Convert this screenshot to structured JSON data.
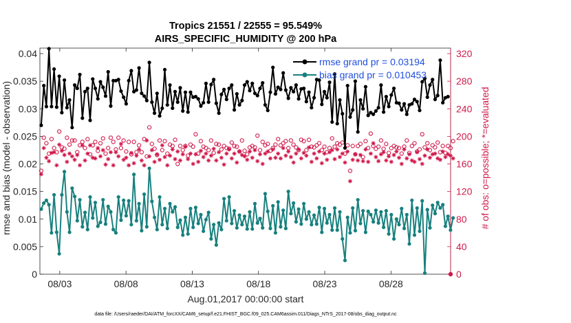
{
  "chart_data": {
    "type": "line",
    "title": "Tropics 21551 / 22555 = 95.549%",
    "subtitle": "AIRS_SPECIFIC_HUMIDITY @ 200 hPa",
    "xlabel": "Aug.01,2017 00:00:00 start",
    "ylabel": "rmse and bias (model - observation)",
    "ylabel_right": "# of obs: o=possible; *=evaluated",
    "xlim": [
      1.5,
      32.5
    ],
    "ylim": [
      0,
      0.041
    ],
    "ylim_right": [
      0,
      328
    ],
    "x_ticks": [
      "08/03",
      "08/08",
      "08/13",
      "08/18",
      "08/23",
      "08/28"
    ],
    "y_ticks": [
      "0",
      "0.005",
      "0.01",
      "0.015",
      "0.02",
      "0.025",
      "0.03",
      "0.035",
      "0.04"
    ],
    "y_right_ticks": [
      "0",
      "40",
      "80",
      "120",
      "160",
      "200",
      "240",
      "280",
      "320"
    ],
    "legend": [
      "rmse grand pr = 0.03194",
      "bias grand pr = 0.010453"
    ],
    "footnote": "data file: /Users/raeder/DAI/ATM_forcXX/CAM6_setup/f.e21.FHIST_BGC.f09_025.CAM6assim.011/Diags_NTrS_2017-08/obs_diag_output.nc",
    "series": [
      {
        "name": "rmse",
        "color": "#000000",
        "values": [
          0.027,
          0.0342,
          0.0304,
          0.0409,
          0.0304,
          0.0372,
          0.0303,
          0.0359,
          0.0293,
          0.0352,
          0.0302,
          0.0316,
          0.0266,
          0.0343,
          0.0337,
          0.0362,
          0.0283,
          0.0331,
          0.0337,
          0.0279,
          0.0354,
          0.0337,
          0.0318,
          0.0349,
          0.0339,
          0.0323,
          0.0367,
          0.0305,
          0.0351,
          0.0351,
          0.0353,
          0.0332,
          0.0321,
          0.0309,
          0.0351,
          0.0369,
          0.0331,
          0.0334,
          0.0374,
          0.0328,
          0.0323,
          0.0315,
          0.0384,
          0.0312,
          0.0292,
          0.0328,
          0.0287,
          0.0301,
          0.0371,
          0.0307,
          0.0343,
          0.0301,
          0.0331,
          0.0312,
          0.0338,
          0.0296,
          0.033,
          0.0294,
          0.033,
          0.0321,
          0.0322,
          0.0318,
          0.0305,
          0.0311,
          0.0346,
          0.0312,
          0.0344,
          0.0353,
          0.031,
          0.0292,
          0.0326,
          0.0335,
          0.0317,
          0.0337,
          0.0343,
          0.0298,
          0.0327,
          0.0307,
          0.0315,
          0.0343,
          0.0349,
          0.0333,
          0.0346,
          0.0328,
          0.0324,
          0.0337,
          0.0347,
          0.0307,
          0.0297,
          0.033,
          0.0375,
          0.0327,
          0.0339,
          0.0335,
          0.0365,
          0.0334,
          0.0319,
          0.0338,
          0.0331,
          0.0343,
          0.0318,
          0.0336,
          0.0337,
          0.0313,
          0.033,
          0.0302,
          0.032,
          0.0353,
          0.0352,
          0.0308,
          0.0331,
          0.032,
          0.0348,
          0.0276,
          0.0363,
          0.0273,
          0.0316,
          0.0291,
          0.0229,
          0.0342,
          0.0285,
          0.0298,
          0.035,
          0.0258,
          0.0316,
          0.03,
          0.034,
          0.0288,
          0.0293,
          0.029,
          0.0296,
          0.0302,
          0.0343,
          0.0294,
          0.0322,
          0.0304,
          0.0325,
          0.0337,
          0.0311,
          0.031,
          0.0298,
          0.0309,
          0.029,
          0.0307,
          0.0309,
          0.0317,
          0.0313,
          0.0297,
          0.0349,
          0.0355,
          0.0321,
          0.0343,
          0.0353,
          0.0317,
          0.0324,
          0.0388,
          0.0311,
          0.032,
          0.0322
        ]
      },
      {
        "name": "bias",
        "color": "#17807e",
        "values": [
          0.0118,
          0.0129,
          0.0134,
          0.0126,
          0.0075,
          0.0144,
          0.0076,
          0.0037,
          0.0144,
          0.0186,
          0.0113,
          0.0076,
          0.0156,
          0.0141,
          0.0097,
          0.0135,
          0.0086,
          0.0112,
          0.0081,
          0.014,
          0.0102,
          0.013,
          0.0087,
          0.0094,
          0.0135,
          0.0091,
          0.0123,
          0.0113,
          0.0081,
          0.0075,
          0.014,
          0.0098,
          0.0134,
          0.0106,
          0.0133,
          0.009,
          0.0181,
          0.0097,
          0.0128,
          0.0079,
          0.0145,
          0.0086,
          0.0192,
          0.0132,
          0.0103,
          0.0081,
          0.014,
          0.009,
          0.0119,
          0.0083,
          0.0128,
          0.0113,
          0.0122,
          0.0085,
          0.0098,
          0.0071,
          0.0103,
          0.0073,
          0.0119,
          0.0085,
          0.0121,
          0.0092,
          0.0108,
          0.0078,
          0.0099,
          0.0112,
          0.0064,
          0.009,
          0.0053,
          0.0093,
          0.0081,
          0.0137,
          0.0097,
          0.014,
          0.0092,
          0.0115,
          0.0084,
          0.0107,
          0.009,
          0.0105,
          0.0082,
          0.0113,
          0.0082,
          0.0128,
          0.0093,
          0.0101,
          0.0084,
          0.0146,
          0.0114,
          0.0083,
          0.0124,
          0.0075,
          0.0131,
          0.0086,
          0.0116,
          0.0083,
          0.015,
          0.011,
          0.0129,
          0.0095,
          0.0118,
          0.0091,
          0.0128,
          0.01,
          0.0113,
          0.009,
          0.0107,
          0.0091,
          0.0121,
          0.0076,
          0.0119,
          0.0093,
          0.0108,
          0.008,
          0.012,
          0.008,
          0.0113,
          0.0064,
          0.0025,
          0.0103,
          0.0075,
          0.012,
          0.0079,
          0.0135,
          0.0092,
          0.0115,
          0.0076,
          0.0114,
          0.0108,
          0.0095,
          0.0116,
          0.0093,
          0.0113,
          0.0085,
          0.0115,
          0.0073,
          0.0108,
          0.0064,
          0.01,
          0.009,
          0.0119,
          0.0083,
          0.0108,
          0.0055,
          0.0134,
          0.0071,
          0.012,
          0.0078,
          0.0133,
          0.0002,
          0.0117,
          0.0084,
          0.0125,
          0.011,
          0.013,
          0.012,
          0.0126,
          0.0087,
          0.0105,
          0.008,
          0.0102
        ]
      },
      {
        "name": "possible",
        "color": "#d0194a",
        "values": [
          150,
          198,
          190,
          175,
          196,
          183,
          177,
          207,
          184,
          182,
          198,
          188,
          194,
          194,
          177,
          187,
          192,
          183,
          196,
          174,
          187,
          192,
          179,
          190,
          197,
          175,
          183,
          198,
          192,
          181,
          198,
          183,
          194,
          178,
          192,
          174,
          192,
          177,
          187,
          177,
          196,
          171,
          213,
          189,
          182,
          173,
          194,
          180,
          193,
          175,
          188,
          186,
          195,
          160,
          186,
          180,
          186,
          172,
          188,
          185,
          203,
          175,
          193,
          185,
          183,
          180,
          194,
          176,
          189,
          188,
          181,
          186,
          183,
          182,
          191,
          186,
          185,
          178,
          194,
          179,
          174,
          184,
          186,
          184,
          201,
          180,
          192,
          187,
          189,
          179,
          183,
          188,
          196,
          187,
          190,
          193,
          183,
          194,
          188,
          184,
          180,
          195,
          193,
          180,
          195,
          185,
          184,
          187,
          190,
          180,
          185,
          177,
          183,
          197,
          185,
          190,
          188,
          191,
          175,
          187,
          150,
          186,
          174,
          186,
          189,
          170,
          193,
          183,
          204,
          186,
          182,
          185,
          194,
          182,
          189,
          176,
          183,
          186,
          184,
          183,
          175,
          185,
          194,
          176,
          186,
          190,
          178,
          181,
          203,
          184,
          190,
          180,
          187,
          184,
          191,
          177,
          186,
          176,
          186,
          183,
          193
        ]
      },
      {
        "name": "evaluated",
        "color": "#d0194a",
        "values": [
          145,
          183,
          169,
          164,
          176,
          177,
          158,
          188,
          179,
          173,
          163,
          175,
          171,
          166,
          173,
          158,
          187,
          165,
          175,
          187,
          169,
          168,
          183,
          171,
          180,
          159,
          167,
          177,
          158,
          177,
          171,
          189,
          166,
          169,
          158,
          176,
          161,
          172,
          181,
          165,
          158,
          194,
          171,
          180,
          163,
          174,
          166,
          187,
          170,
          158,
          172,
          181,
          167,
          178,
          165,
          174,
          185,
          167,
          175,
          160,
          174,
          163,
          179,
          170,
          175,
          165,
          172,
          182,
          165,
          177,
          169,
          159,
          175,
          181,
          168,
          175,
          162,
          178,
          173,
          171,
          166,
          178,
          169,
          180,
          164,
          174,
          160,
          175,
          178,
          168,
          181,
          169,
          175,
          168,
          183,
          172,
          178,
          170,
          162,
          175,
          181,
          168,
          176,
          172,
          184,
          163,
          175,
          168,
          178,
          161,
          175,
          166,
          177,
          180,
          167,
          181,
          170,
          175,
          162,
          178,
          135,
          166,
          174,
          165,
          173,
          164,
          181,
          163,
          175,
          190,
          170,
          164,
          174,
          177,
          165,
          171,
          163,
          173,
          178,
          169,
          160,
          181,
          168,
          174,
          165,
          163,
          177,
          167,
          160,
          172,
          181,
          169,
          174,
          175,
          168,
          166,
          178,
          170,
          174,
          172,
          168
        ]
      }
    ]
  }
}
